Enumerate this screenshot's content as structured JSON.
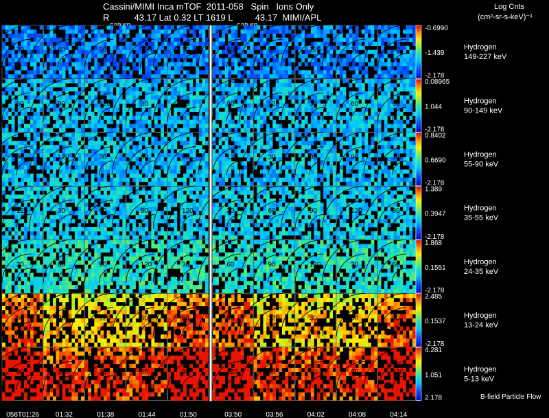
{
  "header": {
    "line1": "Cassini/MIMI Inca mTOF  2011-058   Spin   Ions Only",
    "line2": "R          43.17 Lat 0.32 LT 1619 L         43.17  MIMI/APL",
    "legend_title": "Log Cnts",
    "legend_units": "(cm²-sr-s-keV)⁻¹",
    "saturn_labels": [
      "saturn",
      "saturn"
    ],
    "footer_note": "B-field Particle Flow"
  },
  "chart_data": {
    "type": "heatmap",
    "title": "Cassini/MIMI Inca mTOF 2011-058 Spin Ions Only",
    "time_labels": [
      "058T01:26",
      "01:32",
      "01:38",
      "01:44",
      "01:50",
      "03:50",
      "03:56",
      "04:02",
      "04:08",
      "04:14"
    ],
    "species_rows": [
      {
        "species": "Hydrogen",
        "energy": "149-227 keV",
        "max": "-0.6990",
        "mid": "-1.439",
        "min": "-2.178",
        "level": 0.25
      },
      {
        "species": "Hydrogen",
        "energy": "90-149 keV",
        "max": "0.08965",
        "mid": "1.044",
        "min": "-2.178",
        "level": 0.35
      },
      {
        "species": "Hydrogen",
        "energy": "55-90 keV",
        "max": "0.8402",
        "mid": "0.6690",
        "min": "-2.178",
        "level": 0.35
      },
      {
        "species": "Hydrogen",
        "energy": "35-55 keV",
        "max": "1.389",
        "mid": "0.3947",
        "min": "-2.178",
        "level": 0.38
      },
      {
        "species": "Hydrogen",
        "energy": "24-35 keV",
        "max": "1.868",
        "mid": "0.1551",
        "min": "-2.178",
        "level": 0.45
      },
      {
        "species": "Hydrogen",
        "energy": "13-24 keV",
        "max": "2.485",
        "mid": "0.1537",
        "min": "-2.178",
        "level": 0.62
      },
      {
        "species": "Hydrogen",
        "energy": "5-13 keV",
        "max": "4.281",
        "mid": "1.051",
        "min": "2.178",
        "level": 0.82
      }
    ],
    "contour_labels": [
      "30",
      "60",
      "90",
      "120",
      "150"
    ]
  }
}
